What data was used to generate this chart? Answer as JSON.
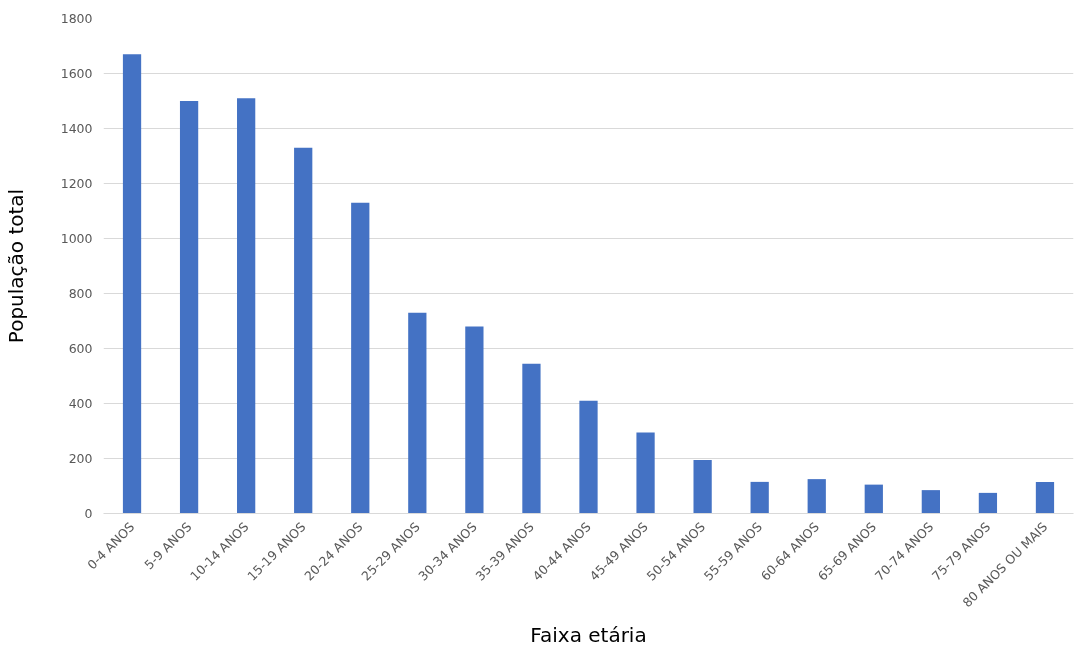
{
  "chart_data": {
    "type": "bar",
    "xlabel": "Faixa etária",
    "ylabel": "População total",
    "categories": [
      "0-4 ANOS",
      "5-9 ANOS",
      "10-14 ANOS",
      "15-19 ANOS",
      "20-24 ANOS",
      "25-29 ANOS",
      "30-34 ANOS",
      "35-39 ANOS",
      "40-44 ANOS",
      "45-49 ANOS",
      "50-54 ANOS",
      "55-59 ANOS",
      "60-64 ANOS",
      "65-69 ANOS",
      "70-74 ANOS",
      "75-79 ANOS",
      "80 ANOS OU MAIS"
    ],
    "values": [
      1670,
      1500,
      1510,
      1330,
      1130,
      730,
      680,
      545,
      410,
      295,
      195,
      115,
      125,
      105,
      85,
      75,
      115
    ],
    "color": "#4472c4",
    "ylim": [
      0,
      1800
    ],
    "yticks": [
      0,
      200,
      400,
      600,
      800,
      1000,
      1200,
      1400,
      1600,
      1800
    ],
    "grid": "y"
  }
}
